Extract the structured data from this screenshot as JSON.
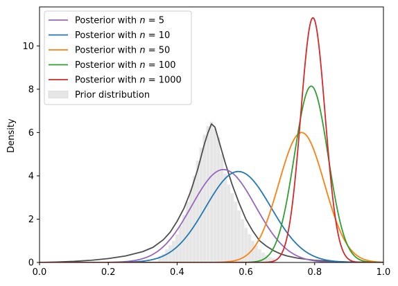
{
  "chart_data": {
    "type": "line",
    "title": "",
    "xlabel": "",
    "ylabel": "Density",
    "xlim": [
      0.0,
      1.0
    ],
    "ylim": [
      0,
      11.8
    ],
    "xticks": [
      "0.0",
      "0.2",
      "0.4",
      "0.6",
      "0.8",
      "1.0"
    ],
    "yticks": [
      "0",
      "2",
      "4",
      "6",
      "8",
      "10"
    ],
    "grid": false,
    "legend_position": "top-left",
    "legend": [
      {
        "kind": "line",
        "label": "Posterior with n = 5",
        "prefix": "Posterior with ",
        "var": "n",
        "eq": " = 5",
        "color": "#9467bd"
      },
      {
        "kind": "line",
        "label": "Posterior with n = 10",
        "prefix": "Posterior with ",
        "var": "n",
        "eq": " = 10",
        "color": "#1f77b4"
      },
      {
        "kind": "line",
        "label": "Posterior with n = 50",
        "prefix": "Posterior with ",
        "var": "n",
        "eq": " = 50",
        "color": "#ff7f0e"
      },
      {
        "kind": "line",
        "label": "Posterior with n = 100",
        "prefix": "Posterior with ",
        "var": "n",
        "eq": " = 100",
        "color": "#2ca02c"
      },
      {
        "kind": "line",
        "label": "Posterior with n = 1000",
        "prefix": "Posterior with ",
        "var": "n",
        "eq": " = 1000",
        "color": "#d62728"
      },
      {
        "kind": "patch",
        "label": "Prior distribution",
        "prefix": "Prior distribution",
        "var": "",
        "eq": "",
        "color": "#e6e6e6"
      }
    ],
    "prior_histogram": {
      "name": "Prior distribution",
      "color": "#e6e6e6",
      "bin_centers": [
        0.35,
        0.36,
        0.37,
        0.38,
        0.39,
        0.4,
        0.41,
        0.42,
        0.43,
        0.44,
        0.45,
        0.46,
        0.47,
        0.48,
        0.49,
        0.5,
        0.51,
        0.52,
        0.53,
        0.54,
        0.55,
        0.56,
        0.57,
        0.58,
        0.59,
        0.6,
        0.61,
        0.62,
        0.63,
        0.64,
        0.65,
        0.66,
        0.67,
        0.68
      ],
      "values": [
        0.3,
        0.4,
        0.6,
        0.8,
        1.0,
        1.3,
        1.7,
        2.2,
        2.8,
        3.4,
        4.0,
        4.7,
        5.3,
        5.9,
        6.3,
        6.5,
        6.2,
        5.8,
        5.0,
        4.1,
        3.6,
        3.2,
        2.8,
        2.4,
        2.0,
        1.6,
        1.3,
        1.0,
        0.8,
        0.6,
        0.45,
        0.35,
        0.25,
        0.2
      ]
    },
    "prior_density": {
      "name": "Prior density",
      "color": "#4d4d4d",
      "x": [
        0.0,
        0.05,
        0.1,
        0.15,
        0.2,
        0.25,
        0.3,
        0.33,
        0.36,
        0.38,
        0.4,
        0.42,
        0.44,
        0.46,
        0.48,
        0.49,
        0.5,
        0.51,
        0.52,
        0.54,
        0.56,
        0.58,
        0.6,
        0.62,
        0.64,
        0.66,
        0.68,
        0.7,
        0.72,
        0.75,
        0.8,
        0.85,
        0.9,
        1.0
      ],
      "y": [
        0.0,
        0.02,
        0.05,
        0.1,
        0.18,
        0.3,
        0.5,
        0.7,
        1.05,
        1.4,
        1.9,
        2.5,
        3.3,
        4.3,
        5.5,
        6.0,
        6.4,
        6.25,
        5.7,
        4.6,
        3.6,
        2.75,
        2.0,
        1.45,
        1.0,
        0.75,
        0.55,
        0.4,
        0.3,
        0.2,
        0.1,
        0.05,
        0.02,
        0.0
      ]
    },
    "series": [
      {
        "name": "Posterior with n = 5",
        "color": "#9467bd",
        "mean": 0.535,
        "sd": 0.093
      },
      {
        "name": "Posterior with n = 10",
        "color": "#1f77b4",
        "mean": 0.578,
        "sd": 0.095
      },
      {
        "name": "Posterior with n = 50",
        "color": "#ff7f0e",
        "mean": 0.762,
        "sd": 0.0665
      },
      {
        "name": "Posterior with n = 100",
        "color": "#2ca02c",
        "mean": 0.79,
        "sd": 0.049
      },
      {
        "name": "Posterior with n = 1000",
        "color": "#d62728",
        "mean": 0.795,
        "sd": 0.0353
      }
    ]
  }
}
